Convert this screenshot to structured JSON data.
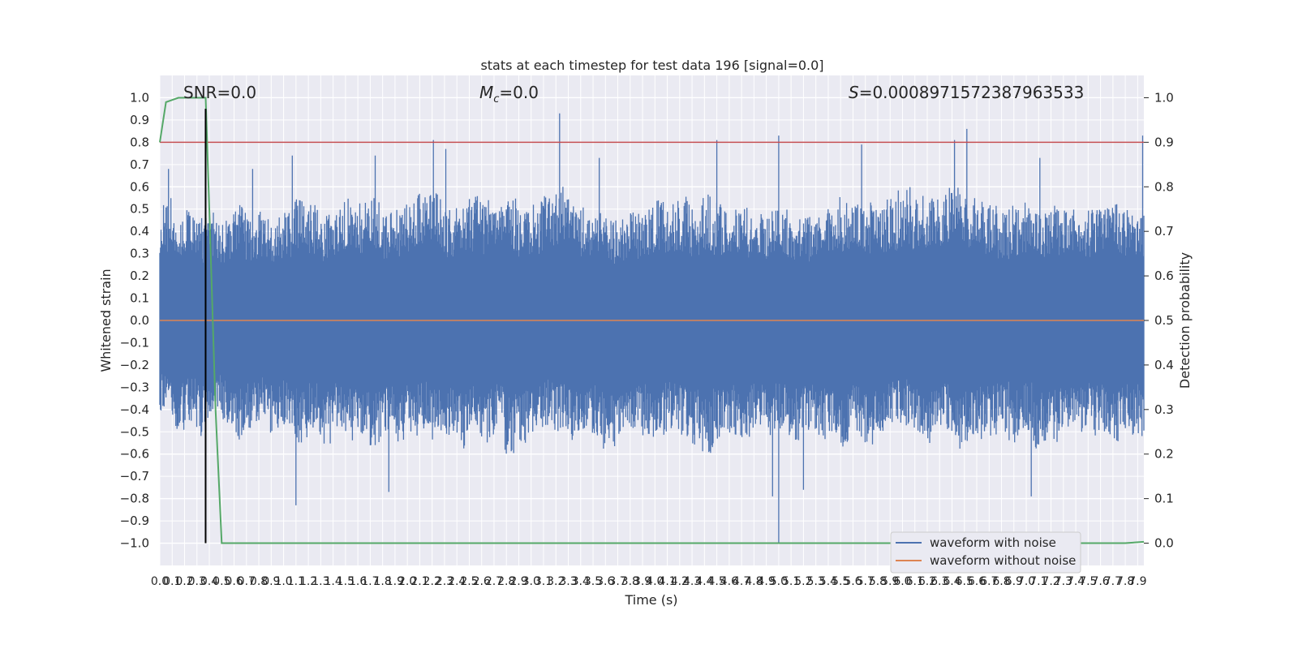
{
  "chart_data": {
    "type": "line",
    "title": "stats at each timestep for test data 196 [signal=0.0]",
    "xlabel": "Time (s)",
    "ylabel": "Whitened strain",
    "ylabel_right": "Detection probability",
    "xlim": [
      0.0,
      7.95
    ],
    "ylim": [
      -1.1,
      1.1
    ],
    "ylim_right": [
      -0.05,
      1.05
    ],
    "grid": true,
    "legend_position": "bottom-right",
    "x_ticks": [
      "0.0",
      "0.1",
      "0.2",
      "0.3",
      "0.4",
      "0.5",
      "0.6",
      "0.7",
      "0.8",
      "0.9",
      "1.0",
      "1.1",
      "1.2",
      "1.3",
      "1.4",
      "1.5",
      "1.6",
      "1.7",
      "1.8",
      "1.9",
      "2.0",
      "2.1",
      "2.2",
      "2.3",
      "2.4",
      "2.5",
      "2.6",
      "2.7",
      "2.8",
      "2.9",
      "3.0",
      "3.1",
      "3.2",
      "3.3",
      "3.4",
      "3.5",
      "3.6",
      "3.7",
      "3.8",
      "3.9",
      "4.0",
      "4.1",
      "4.2",
      "4.3",
      "4.4",
      "4.5",
      "4.6",
      "4.7",
      "4.8",
      "4.9",
      "5.0",
      "5.1",
      "5.2",
      "5.3",
      "5.4",
      "5.5",
      "5.6",
      "5.7",
      "5.8",
      "5.9",
      "6.0",
      "6.1",
      "6.2",
      "6.3",
      "6.4",
      "6.5",
      "6.6",
      "6.7",
      "6.8",
      "6.9",
      "7.0",
      "7.1",
      "7.2",
      "7.3",
      "7.4",
      "7.5",
      "7.6",
      "7.7",
      "7.8",
      "7.9"
    ],
    "y_ticks_left": [
      "1.0",
      "0.9",
      "0.8",
      "0.7",
      "0.6",
      "0.5",
      "0.4",
      "0.3",
      "0.2",
      "0.1",
      "0.0",
      "−0.1",
      "−0.2",
      "−0.3",
      "−0.4",
      "−0.5",
      "−0.6",
      "−0.7",
      "−0.8",
      "−0.9",
      "−1.0"
    ],
    "y_ticks_right": [
      "1.0",
      "0.9",
      "0.8",
      "0.7",
      "0.6",
      "0.5",
      "0.4",
      "0.3",
      "0.2",
      "0.1",
      "0.0"
    ],
    "annotations": {
      "snr": "SNR=0.0",
      "mc_symbol": "M",
      "mc_sub": "c",
      "mc_value": "=0.0",
      "s_symbol": "S",
      "s_value": "=0.000897157238796353​3"
    },
    "series": [
      {
        "name": "waveform with noise",
        "color": "#4c72b0",
        "axis": "left",
        "description_values": "dense noise, envelope approx +/-0.4 with spikes",
        "upper_envelope": [
          0.55,
          0.48,
          0.52,
          0.47,
          0.5,
          0.46,
          0.53,
          0.49,
          0.51,
          0.47,
          0.5,
          0.55,
          0.52,
          0.48,
          0.5,
          0.56,
          0.53,
          0.57,
          0.49,
          0.52,
          0.55,
          0.6,
          0.58,
          0.5,
          0.52,
          0.56,
          0.54,
          0.52,
          0.55,
          0.5,
          0.53,
          0.56,
          0.6,
          0.55,
          0.52,
          0.49,
          0.46,
          0.47,
          0.5,
          0.52,
          0.55,
          0.53,
          0.56,
          0.52,
          0.57,
          0.53,
          0.5,
          0.51,
          0.48,
          0.5,
          0.5,
          0.46,
          0.48,
          0.5,
          0.53,
          0.56,
          0.52,
          0.54,
          0.5,
          0.55,
          0.6,
          0.56,
          0.58,
          0.57,
          0.6,
          0.58,
          0.55,
          0.53,
          0.5,
          0.52,
          0.54,
          0.5,
          0.52,
          0.5,
          0.53,
          0.5,
          0.52,
          0.54,
          0.5,
          0.52
        ],
        "lower_envelope": [
          -0.42,
          -0.5,
          -0.46,
          -0.52,
          -0.44,
          -0.48,
          -0.55,
          -0.5,
          -0.46,
          -0.52,
          -0.48,
          -0.55,
          -0.5,
          -0.56,
          -0.5,
          -0.55,
          -0.52,
          -0.58,
          -0.5,
          -0.55,
          -0.52,
          -0.5,
          -0.55,
          -0.52,
          -0.58,
          -0.5,
          -0.55,
          -0.52,
          -0.6,
          -0.55,
          -0.5,
          -0.48,
          -0.52,
          -0.55,
          -0.5,
          -0.52,
          -0.58,
          -0.55,
          -0.5,
          -0.52,
          -0.55,
          -0.5,
          -0.52,
          -0.56,
          -0.6,
          -0.55,
          -0.52,
          -0.56,
          -0.5,
          -0.52,
          -0.5,
          -0.55,
          -0.5,
          -0.52,
          -0.55,
          -0.58,
          -0.52,
          -0.56,
          -0.54,
          -0.5,
          -0.48,
          -0.52,
          -0.56,
          -0.5,
          -0.52,
          -0.58,
          -0.54,
          -0.52,
          -0.5,
          -0.55,
          -0.5,
          -0.58,
          -0.55,
          -0.5,
          -0.54,
          -0.5,
          -0.52,
          -0.55,
          -0.5,
          -0.52
        ],
        "peaks": [
          [
            0.07,
            0.68
          ],
          [
            0.75,
            0.68
          ],
          [
            1.07,
            0.74
          ],
          [
            1.74,
            0.74
          ],
          [
            2.21,
            0.81
          ],
          [
            2.31,
            0.77
          ],
          [
            3.23,
            0.93
          ],
          [
            3.55,
            0.73
          ],
          [
            4.5,
            0.81
          ],
          [
            5.0,
            0.83
          ],
          [
            5.67,
            0.79
          ],
          [
            6.42,
            0.81
          ],
          [
            6.52,
            0.86
          ],
          [
            7.11,
            0.73
          ],
          [
            7.94,
            0.83
          ]
        ],
        "troughs": [
          [
            1.1,
            -0.83
          ],
          [
            1.85,
            -0.77
          ],
          [
            4.95,
            -0.79
          ],
          [
            5.0,
            -1.0
          ],
          [
            5.2,
            -0.76
          ],
          [
            7.04,
            -0.79
          ]
        ]
      },
      {
        "name": "waveform without noise",
        "color": "#dd8452",
        "axis": "left",
        "x": [
          0.0,
          7.95
        ],
        "y": [
          0.0,
          0.0
        ]
      },
      {
        "color": "#55a868",
        "axis": "right",
        "x": [
          0.0,
          0.05,
          0.1,
          0.15,
          0.2,
          0.25,
          0.3,
          0.37,
          0.4,
          0.45,
          0.5,
          1.0,
          2.0,
          3.0,
          4.0,
          5.0,
          6.0,
          7.0,
          7.8,
          7.95
        ],
        "y": [
          0.9,
          0.99,
          0.995,
          1.0,
          1.0,
          1.0,
          1.0,
          1.0,
          0.75,
          0.3,
          0.0,
          0.0,
          0.0,
          0.0,
          0.0,
          0.0,
          0.0,
          0.0,
          0.0,
          0.003
        ]
      }
    ],
    "threshold": {
      "color": "#c44e52",
      "axis": "right",
      "value": 0.9
    },
    "marker_line": {
      "color": "#000000",
      "x": 0.37,
      "y_range": [
        -1.0,
        0.95
      ]
    }
  }
}
